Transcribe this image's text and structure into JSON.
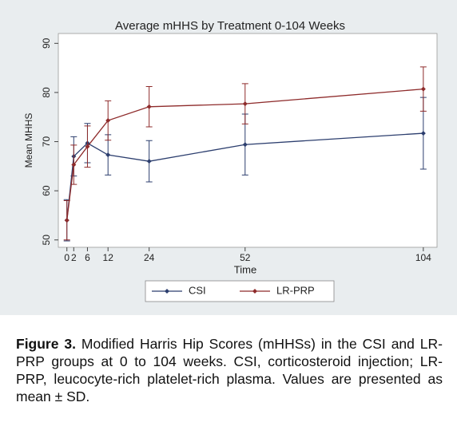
{
  "chart_data": {
    "type": "line",
    "title": "Average mHHS by Treatment 0-104 Weeks",
    "x_label": "Time",
    "y_label": "Mean MHHS",
    "x": [
      0,
      2,
      6,
      12,
      24,
      52,
      104
    ],
    "series": [
      {
        "name": "CSI",
        "color": "#2c3e6e",
        "values": [
          54,
          67,
          69.7,
          67.3,
          66,
          69.4,
          71.7
        ],
        "errors": [
          4.2,
          4,
          4,
          4.1,
          4.2,
          6.2,
          7.3
        ]
      },
      {
        "name": "LR-PRP",
        "color": "#8e2b2b",
        "values": [
          54,
          65.3,
          69,
          74.3,
          77.1,
          77.7,
          80.7
        ],
        "errors": [
          4,
          4,
          4.2,
          4,
          4.1,
          4.1,
          4.5
        ]
      }
    ],
    "xlim": [
      -2.5,
      108
    ],
    "xticks": [
      0,
      2,
      6,
      12,
      24,
      52,
      104
    ],
    "ylim": [
      48.5,
      92
    ],
    "yticks": [
      50,
      60,
      70,
      80,
      90
    ],
    "grid": false,
    "legend": "bottom"
  },
  "caption": {
    "label": "Figure 3.",
    "text": "Modified Harris Hip Scores (mHHSs) in the CSI and LR-PRP groups at 0 to 104 weeks. CSI, corticosteroid injection; LR-PRP, leucocyte-rich platelet-rich plasma. Values are presented as mean ± SD."
  }
}
